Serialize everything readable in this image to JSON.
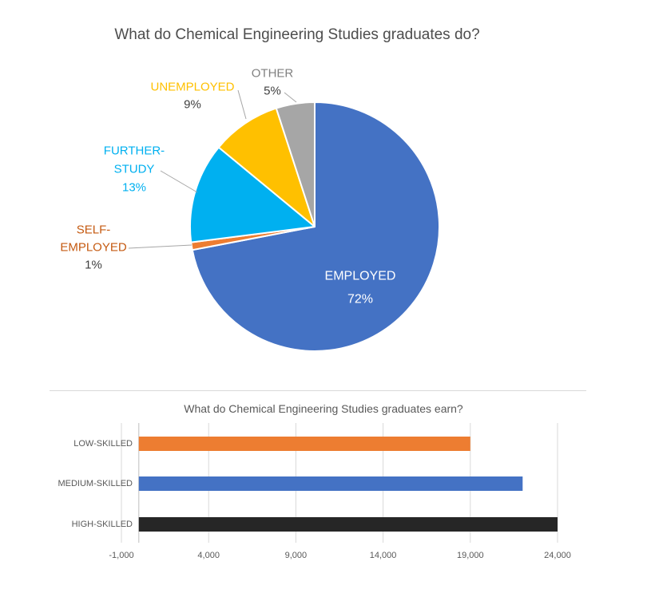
{
  "chart_data": [
    {
      "type": "pie",
      "title": "What do Chemical Engineering Studies graduates do?",
      "title_color": "#4d4d4d",
      "slices": [
        {
          "label": "EMPLOYED",
          "value": 72,
          "color": "#4472C4",
          "label_color": "#FFFFFF",
          "pct_color": "#FFFFFF",
          "label_placement": "inside"
        },
        {
          "label": "SELF-EMPLOYED",
          "value": 1,
          "color": "#ED7D31",
          "label_color": "#C55A11",
          "pct_color": "#404040",
          "label_placement": "outside"
        },
        {
          "label": "FURTHER-STUDY",
          "value": 13,
          "color": "#00B0F0",
          "label_color": "#00B0F0",
          "pct_color": "#00B0F0",
          "label_placement": "outside"
        },
        {
          "label": "UNEMPLOYED",
          "value": 9,
          "color": "#FFC000",
          "label_color": "#FFC000",
          "pct_color": "#404040",
          "label_placement": "outside"
        },
        {
          "label": "OTHER",
          "value": 5,
          "color": "#A6A6A6",
          "label_color": "#808080",
          "pct_color": "#404040",
          "label_placement": "outside"
        }
      ],
      "start_angle_deg": 0,
      "direction": "clockwise",
      "slice_border_color": "#FFFFFF",
      "leader_line_color": "#A6A6A6",
      "legend": "none"
    },
    {
      "type": "bar",
      "orientation": "horizontal",
      "title": "What do Chemical Engineering Studies graduates earn?",
      "title_color": "#595959",
      "categories": [
        "LOW-SKILLED",
        "MEDIUM-SKILLED",
        "HIGH-SKILLED"
      ],
      "values": [
        19000,
        22000,
        24000
      ],
      "bar_colors": [
        "#ED7D31",
        "#4472C4",
        "#262626"
      ],
      "xticks": [
        -1000,
        4000,
        9000,
        14000,
        19000,
        24000
      ],
      "xlim": [
        -1000,
        26000
      ],
      "grid": "vertical",
      "gridline_color": "#D9D9D9",
      "value_axis_line_color": "#BFBFBF",
      "axis_label_color": "#595959",
      "xlabel": "",
      "ylabel": "",
      "legend": "none"
    }
  ],
  "divider": {
    "color": "#D9D9D9"
  }
}
